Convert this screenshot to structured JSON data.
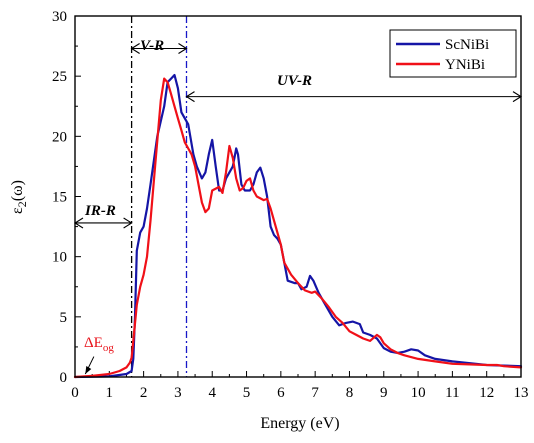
{
  "colors": {
    "ScNiBi": "#1515a6",
    "YNiBi": "#f01018",
    "axis": "#000000",
    "gap_label": "#e8131b"
  },
  "legend": {
    "entries": [
      "ScNiBi",
      "YNiBi"
    ],
    "placement": "top-right"
  },
  "annotations": {
    "ir_region": "IR-R",
    "v_region": "V-R",
    "uv_region": "UV-R",
    "gap_main": "ΔE",
    "gap_sub": "og",
    "ir_region_range": [
      0,
      1.65
    ],
    "v_region_range": [
      1.65,
      3.25
    ],
    "uv_region_range": [
      3.25,
      13
    ]
  },
  "chart_data": {
    "type": "line",
    "xlabel": "Energy (eV)",
    "ylabel_main": "ε",
    "ylabel_sub": "2",
    "ylabel_suffix": "(ω)",
    "xlim": [
      0,
      13
    ],
    "ylim": [
      0,
      30
    ],
    "x_ticks": [
      "0",
      "1",
      "2",
      "3",
      "4",
      "5",
      "6",
      "7",
      "8",
      "9",
      "10",
      "11",
      "12",
      "13"
    ],
    "y_ticks": [
      "0",
      "5",
      "10",
      "15",
      "20",
      "25",
      "30"
    ],
    "grid": false,
    "series": [
      {
        "name": "ScNiBi",
        "points": [
          [
            0,
            0
          ],
          [
            1.0,
            0.05
          ],
          [
            1.5,
            0.25
          ],
          [
            1.65,
            0.5
          ],
          [
            1.7,
            1.5
          ],
          [
            1.75,
            5
          ],
          [
            1.8,
            10.5
          ],
          [
            1.9,
            12
          ],
          [
            2.0,
            12.5
          ],
          [
            2.1,
            14
          ],
          [
            2.2,
            16
          ],
          [
            2.4,
            20
          ],
          [
            2.6,
            22.5
          ],
          [
            2.7,
            24.5
          ],
          [
            2.8,
            24.8
          ],
          [
            2.9,
            25.1
          ],
          [
            3.0,
            24
          ],
          [
            3.1,
            22
          ],
          [
            3.2,
            21.5
          ],
          [
            3.3,
            21
          ],
          [
            3.45,
            18.5
          ],
          [
            3.55,
            17.5
          ],
          [
            3.7,
            16.5
          ],
          [
            3.8,
            17
          ],
          [
            3.9,
            18.5
          ],
          [
            4.0,
            19.7
          ],
          [
            4.1,
            17.5
          ],
          [
            4.2,
            15.5
          ],
          [
            4.3,
            15.5
          ],
          [
            4.4,
            16.5
          ],
          [
            4.5,
            17
          ],
          [
            4.6,
            17.5
          ],
          [
            4.7,
            19
          ],
          [
            4.75,
            18.5
          ],
          [
            4.85,
            16
          ],
          [
            4.95,
            15.5
          ],
          [
            5.1,
            15.5
          ],
          [
            5.2,
            16
          ],
          [
            5.3,
            17
          ],
          [
            5.4,
            17.4
          ],
          [
            5.5,
            16.5
          ],
          [
            5.6,
            15
          ],
          [
            5.7,
            12.5
          ],
          [
            5.8,
            11.8
          ],
          [
            5.9,
            11.5
          ],
          [
            6.0,
            11
          ],
          [
            6.1,
            9.5
          ],
          [
            6.2,
            8
          ],
          [
            6.4,
            7.8
          ],
          [
            6.5,
            7.8
          ],
          [
            6.6,
            7.3
          ],
          [
            6.75,
            7.5
          ],
          [
            6.85,
            8.4
          ],
          [
            6.95,
            8
          ],
          [
            7.1,
            7
          ],
          [
            7.3,
            6
          ],
          [
            7.5,
            5
          ],
          [
            7.7,
            4.3
          ],
          [
            7.9,
            4.5
          ],
          [
            8.1,
            4.6
          ],
          [
            8.3,
            4.4
          ],
          [
            8.4,
            3.7
          ],
          [
            8.6,
            3.5
          ],
          [
            8.8,
            3.2
          ],
          [
            9.0,
            2.4
          ],
          [
            9.2,
            2.1
          ],
          [
            9.4,
            2
          ],
          [
            9.6,
            2.1
          ],
          [
            9.8,
            2.3
          ],
          [
            10.0,
            2.2
          ],
          [
            10.2,
            1.8
          ],
          [
            10.5,
            1.5
          ],
          [
            11.0,
            1.3
          ],
          [
            12.0,
            1.0
          ],
          [
            12.5,
            0.95
          ],
          [
            13.0,
            0.9
          ]
        ]
      },
      {
        "name": "YNiBi",
        "points": [
          [
            0,
            0
          ],
          [
            0.5,
            0.1
          ],
          [
            1.0,
            0.25
          ],
          [
            1.3,
            0.5
          ],
          [
            1.5,
            0.8
          ],
          [
            1.6,
            1.2
          ],
          [
            1.65,
            1.6
          ],
          [
            1.7,
            3
          ],
          [
            1.8,
            6
          ],
          [
            1.9,
            7.5
          ],
          [
            2.0,
            8.5
          ],
          [
            2.1,
            10
          ],
          [
            2.2,
            13
          ],
          [
            2.35,
            18
          ],
          [
            2.5,
            23
          ],
          [
            2.6,
            24.8
          ],
          [
            2.7,
            24.5
          ],
          [
            2.8,
            23.5
          ],
          [
            2.9,
            22.5
          ],
          [
            3.0,
            21.5
          ],
          [
            3.1,
            20.5
          ],
          [
            3.2,
            19.5
          ],
          [
            3.3,
            19
          ],
          [
            3.4,
            18.5
          ],
          [
            3.5,
            17.5
          ],
          [
            3.6,
            16
          ],
          [
            3.7,
            14.5
          ],
          [
            3.8,
            13.7
          ],
          [
            3.9,
            14
          ],
          [
            4.0,
            15.5
          ],
          [
            4.2,
            15.8
          ],
          [
            4.3,
            15.3
          ],
          [
            4.4,
            17
          ],
          [
            4.5,
            19.2
          ],
          [
            4.6,
            18.2
          ],
          [
            4.7,
            16.5
          ],
          [
            4.8,
            15.5
          ],
          [
            4.9,
            15.7
          ],
          [
            5.0,
            16.3
          ],
          [
            5.1,
            16.5
          ],
          [
            5.2,
            15.5
          ],
          [
            5.3,
            15
          ],
          [
            5.5,
            14.7
          ],
          [
            5.6,
            14.8
          ],
          [
            5.7,
            14
          ],
          [
            5.8,
            13
          ],
          [
            5.9,
            12
          ],
          [
            6.0,
            11
          ],
          [
            6.1,
            9.5
          ],
          [
            6.3,
            8.5
          ],
          [
            6.5,
            7.8
          ],
          [
            6.7,
            7.2
          ],
          [
            6.9,
            7
          ],
          [
            7.0,
            7.1
          ],
          [
            7.2,
            6.5
          ],
          [
            7.4,
            5.8
          ],
          [
            7.6,
            5
          ],
          [
            7.8,
            4.5
          ],
          [
            8.0,
            3.8
          ],
          [
            8.2,
            3.5
          ],
          [
            8.4,
            3.2
          ],
          [
            8.6,
            3
          ],
          [
            8.8,
            3.5
          ],
          [
            8.9,
            3.3
          ],
          [
            9.0,
            2.8
          ],
          [
            9.2,
            2.3
          ],
          [
            9.4,
            2
          ],
          [
            9.6,
            1.8
          ],
          [
            10.0,
            1.5
          ],
          [
            10.5,
            1.3
          ],
          [
            11.0,
            1.1
          ],
          [
            11.5,
            1.05
          ],
          [
            12.0,
            1.0
          ],
          [
            12.3,
            1.0
          ],
          [
            12.4,
            0.95
          ],
          [
            12.5,
            0.9
          ],
          [
            13.0,
            0.8
          ]
        ]
      }
    ]
  }
}
